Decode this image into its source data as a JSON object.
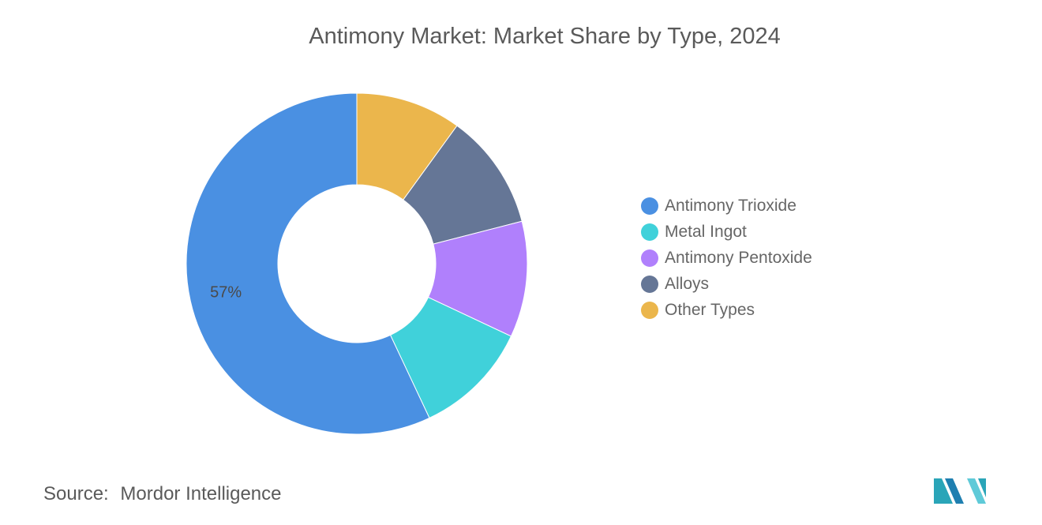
{
  "title": "Antimony Market: Market Share by Type, 2024",
  "source": {
    "label": "Source:",
    "value": "Mordor Intelligence"
  },
  "chart_data": {
    "type": "pie",
    "donut": true,
    "title": "Antimony Market: Market Share by Type, 2024",
    "legend_position": "right",
    "series": [
      {
        "name": "Antimony Trioxide",
        "value": 57,
        "color": "#4a90e2",
        "label": "57%"
      },
      {
        "name": "Metal Ingot",
        "value": 11,
        "color": "#40d1da"
      },
      {
        "name": "Antimony Pentoxide",
        "value": 11,
        "color": "#b080fc"
      },
      {
        "name": "Alloys",
        "value": 11,
        "color": "#657696"
      },
      {
        "name": "Other Types",
        "value": 10,
        "color": "#ebb64c"
      }
    ]
  },
  "logo": {
    "colors": [
      "#2aa5b8",
      "#1f7fb0",
      "#5fcad8"
    ]
  }
}
